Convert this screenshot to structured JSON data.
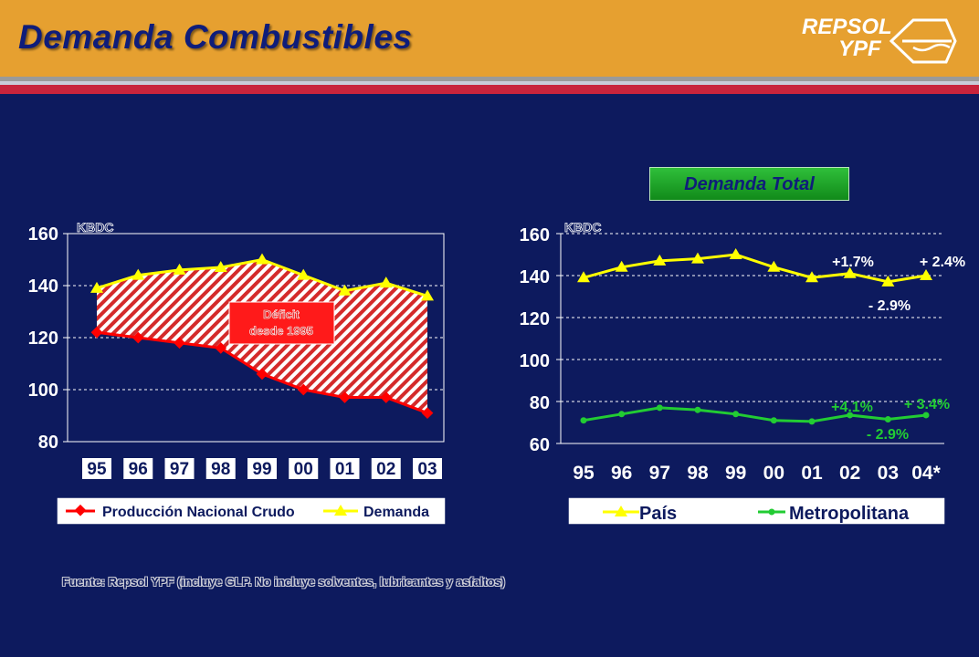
{
  "header": {
    "title": "Demanda Combustibles",
    "logo_line1": "REPSOL",
    "logo_line2": "YPF"
  },
  "colors": {
    "background": "#0d1a5e",
    "header": "#e6a030",
    "accent_red": "#c8243c",
    "produccion": "#ff0000",
    "demanda": "#ffff00",
    "metropolitana": "#22cc33"
  },
  "box_label": "Demanda Total",
  "footer": "Fuente: Repsol YPF (incluye GLP. No incluye solventes, lubricantes y asfaltos)",
  "chart_data": [
    {
      "type": "area",
      "unit_label": "KBDC",
      "categories": [
        "95",
        "96",
        "97",
        "98",
        "99",
        "00",
        "01",
        "02",
        "03"
      ],
      "series": [
        {
          "name": "Producción Nacional Crudo",
          "values": [
            122,
            120,
            118,
            116,
            106,
            100,
            97,
            97,
            91
          ]
        },
        {
          "name": "Demanda",
          "values": [
            139,
            144,
            146,
            147,
            150,
            144,
            138,
            141,
            136
          ]
        }
      ],
      "ylim": [
        80,
        160
      ],
      "yticks": [
        80,
        100,
        120,
        140,
        160
      ],
      "grid": true,
      "legend": "bottom",
      "annotation": "Déficit desde 1995"
    },
    {
      "type": "line",
      "unit_label": "KBDC",
      "categories": [
        "95",
        "96",
        "97",
        "98",
        "99",
        "00",
        "01",
        "02",
        "03",
        "04*"
      ],
      "series": [
        {
          "name": "País",
          "values": [
            139,
            144,
            147,
            148,
            150,
            144,
            139,
            141,
            137,
            140
          ]
        },
        {
          "name": "Metropolitana",
          "values": [
            71,
            74,
            77,
            76,
            74,
            71,
            70.5,
            73.5,
            71.5,
            73.5
          ]
        }
      ],
      "ylim": [
        60,
        160
      ],
      "yticks": [
        60,
        80,
        100,
        120,
        140,
        160
      ],
      "grid": true,
      "legend": "bottom",
      "annotations": [
        {
          "text": "+1.7%",
          "series": "País"
        },
        {
          "text": "+ 2.4%",
          "series": "País"
        },
        {
          "text": "- 2.9%",
          "series": "País"
        },
        {
          "text": "+4.1%",
          "series": "Metropolitana"
        },
        {
          "text": "+ 3.4%",
          "series": "Metropolitana"
        },
        {
          "text": "- 2.9%",
          "series": "Metropolitana"
        }
      ]
    }
  ]
}
